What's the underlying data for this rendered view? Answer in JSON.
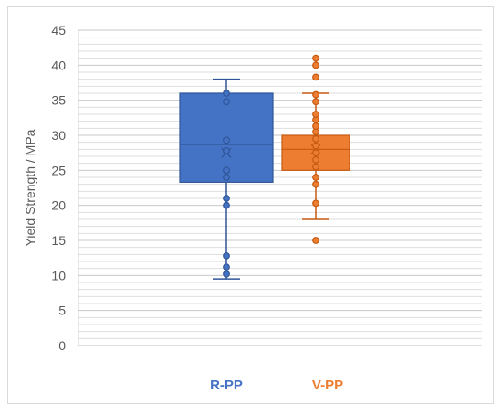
{
  "chart_data": {
    "type": "box",
    "ylabel": "Yield Strength / MPa",
    "ylim": [
      0,
      45
    ],
    "y_ticks": [
      0,
      5,
      10,
      15,
      20,
      25,
      30,
      35,
      40,
      45
    ],
    "minor_grid_step": 1,
    "grid": true,
    "legend_position": "bottom",
    "series": [
      {
        "name": "R-PP",
        "color": "#4472C4",
        "edge_color": "#2F5597",
        "min": 9.5,
        "q1": 23.3,
        "median": 28.7,
        "mean": 27.5,
        "q3": 36.0,
        "max": 38.0,
        "points": [
          10.2,
          11.2,
          12.8,
          20.0,
          21.0,
          24.0,
          25.0,
          27.8,
          29.3,
          34.8,
          36.0
        ]
      },
      {
        "name": "V-PP",
        "color": "#ED7D31",
        "edge_color": "#C55A11",
        "min": 18.0,
        "q1": 25.0,
        "median": 28.0,
        "mean": 28.0,
        "q3": 30.0,
        "max": 36.0,
        "points": [
          15.0,
          20.3,
          23.0,
          24.0,
          25.5,
          26.5,
          27.5,
          28.5,
          29.5,
          30.5,
          31.3,
          32.2,
          33.0,
          34.8,
          35.8,
          38.3,
          40.0,
          41.0
        ]
      }
    ]
  }
}
